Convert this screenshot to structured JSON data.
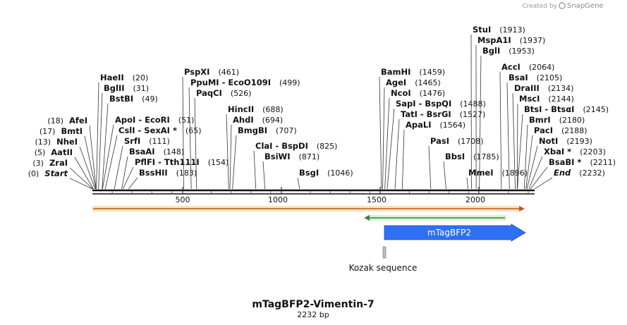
{
  "credit": {
    "prefix": "Created by",
    "brand": "SnapGene"
  },
  "map": {
    "title": "mTagBFP2-Vimentin-7",
    "length_label": "2232 bp",
    "length": 2232,
    "ruler_ticks": [
      "500",
      "1000",
      "1500",
      "2000"
    ]
  },
  "sites": [
    {
      "name": "Start",
      "pos": "(0)",
      "bp": 0,
      "italic": true
    },
    {
      "name": "ZraI",
      "pos": "(3)",
      "bp": 3
    },
    {
      "name": "AatII",
      "pos": "(5)",
      "bp": 5
    },
    {
      "name": "NheI",
      "pos": "(13)",
      "bp": 13
    },
    {
      "name": "BmtI",
      "pos": "(17)",
      "bp": 17
    },
    {
      "name": "AfeI",
      "pos": "(18)",
      "bp": 18
    },
    {
      "name": "HaeII",
      "pos": "(20)",
      "bp": 20
    },
    {
      "name": "BglII",
      "pos": "(31)",
      "bp": 31
    },
    {
      "name": "BstBI",
      "pos": "(49)",
      "bp": 49
    },
    {
      "name": "ApoI - EcoRI",
      "pos": "(51)",
      "bp": 51
    },
    {
      "name": "CslI - SexAI *",
      "pos": "(65)",
      "bp": 65
    },
    {
      "name": "SrfI",
      "pos": "(111)",
      "bp": 111
    },
    {
      "name": "BsaAI",
      "pos": "(148)",
      "bp": 148
    },
    {
      "name": "PflFI - Tth111I",
      "pos": "(154)",
      "bp": 154
    },
    {
      "name": "BssHII",
      "pos": "(183)",
      "bp": 183
    },
    {
      "name": "PspXI",
      "pos": "(461)",
      "bp": 461
    },
    {
      "name": "PpuMI - EcoO109I",
      "pos": "(499)",
      "bp": 499
    },
    {
      "name": "PaqCI",
      "pos": "(526)",
      "bp": 526
    },
    {
      "name": "HincII",
      "pos": "(688)",
      "bp": 688
    },
    {
      "name": "AhdI",
      "pos": "(694)",
      "bp": 694
    },
    {
      "name": "BmgBI",
      "pos": "(707)",
      "bp": 707
    },
    {
      "name": "ClaI - BspDI",
      "pos": "(825)",
      "bp": 825
    },
    {
      "name": "BsiWI",
      "pos": "(871)",
      "bp": 871
    },
    {
      "name": "BsgI",
      "pos": "(1046)",
      "bp": 1046
    },
    {
      "name": "BamHI",
      "pos": "(1459)",
      "bp": 1459
    },
    {
      "name": "AgeI",
      "pos": "(1465)",
      "bp": 1465
    },
    {
      "name": "NcoI",
      "pos": "(1476)",
      "bp": 1476
    },
    {
      "name": "SapI - BspQI",
      "pos": "(1488)",
      "bp": 1488
    },
    {
      "name": "TatI - BsrGI",
      "pos": "(1527)",
      "bp": 1527
    },
    {
      "name": "ApaLI",
      "pos": "(1564)",
      "bp": 1564
    },
    {
      "name": "PasI",
      "pos": "(1708)",
      "bp": 1708
    },
    {
      "name": "BbsI",
      "pos": "(1785)",
      "bp": 1785
    },
    {
      "name": "StuI",
      "pos": "(1913)",
      "bp": 1913
    },
    {
      "name": "MspA1I",
      "pos": "(1937)",
      "bp": 1937
    },
    {
      "name": "BglI",
      "pos": "(1953)",
      "bp": 1953
    },
    {
      "name": "MmeI",
      "pos": "(1896)",
      "bp": 1896
    },
    {
      "name": "AccI",
      "pos": "(2064)",
      "bp": 2064
    },
    {
      "name": "BsaI",
      "pos": "(2105)",
      "bp": 2105
    },
    {
      "name": "DraIII",
      "pos": "(2134)",
      "bp": 2134
    },
    {
      "name": "MscI",
      "pos": "(2144)",
      "bp": 2144
    },
    {
      "name": "BtsI - BtsαI",
      "pos": "(2145)",
      "bp": 2145
    },
    {
      "name": "BmrI",
      "pos": "(2180)",
      "bp": 2180
    },
    {
      "name": "PacI",
      "pos": "(2188)",
      "bp": 2188
    },
    {
      "name": "NotI",
      "pos": "(2193)",
      "bp": 2193
    },
    {
      "name": "XbaI *",
      "pos": "(2203)",
      "bp": 2203
    },
    {
      "name": "BsaBI *",
      "pos": "(2211)",
      "bp": 2211
    },
    {
      "name": "End",
      "pos": "(2232)",
      "bp": 2232,
      "italic": true
    }
  ],
  "features": [
    {
      "name": "",
      "kind": "backbone-arrow",
      "start": 1,
      "end": 2232,
      "color": "#f5a623",
      "direction": "forward"
    },
    {
      "name": "",
      "kind": "primer-arrow",
      "start": 1490,
      "end": 2150,
      "color": "#3ab53a",
      "direction": "reverse"
    },
    {
      "name": "mTagBFP2",
      "kind": "cds",
      "start": 1500,
      "end": 2232,
      "color": "#2f6ff3",
      "direction": "forward"
    },
    {
      "name": "Kozak sequence",
      "kind": "box",
      "start": 1490,
      "end": 1500,
      "color": "#bbbbbb"
    }
  ],
  "colors": {
    "ruler": "#111111",
    "text": "#111111",
    "tick": "#333333"
  }
}
